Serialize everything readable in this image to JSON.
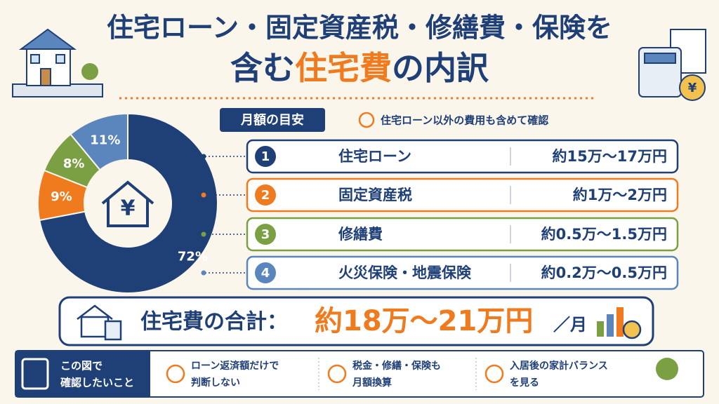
{
  "header": {
    "title_line1": "住宅ローン・固定資産税・修繕費・保険を",
    "title_line2": [
      "含む",
      "住宅費",
      "の内訳"
    ]
  },
  "badge": "月額の目安",
  "note": "住宅ローン以外の費用も含めて確認",
  "chart_data": {
    "type": "pie",
    "donut": true,
    "categories": [
      "住宅ローン",
      "固定資産税",
      "修繕費",
      "火災保険・地震保険"
    ],
    "values": [
      72,
      9,
      8,
      11
    ],
    "value_labels": [
      "72%",
      "9%",
      "8%",
      "11%"
    ],
    "colors": [
      "#1f3f77",
      "#f07b1f",
      "#7aa043",
      "#5b86bd"
    ]
  },
  "rows": [
    {
      "num": 1,
      "amount": "約15万～17万円"
    },
    {
      "num": 2,
      "amount": "約1万～2万円"
    },
    {
      "num": 3,
      "amount": "約0.5万～1.5万円"
    },
    {
      "num": 4,
      "amount": "約0.2万～0.5万円"
    }
  ],
  "total": {
    "label": "住宅費の合計：",
    "amount": "約18万～21万円",
    "unit": "／月"
  },
  "footer": {
    "heading": [
      "この図で",
      "確認したいこと"
    ],
    "items": [
      [
        "ローン返済額だけで",
        "判断しない"
      ],
      [
        "税金・修繕・保険も",
        "月額換算"
      ],
      [
        "入居後の家計バランス",
        "を見る"
      ]
    ]
  }
}
